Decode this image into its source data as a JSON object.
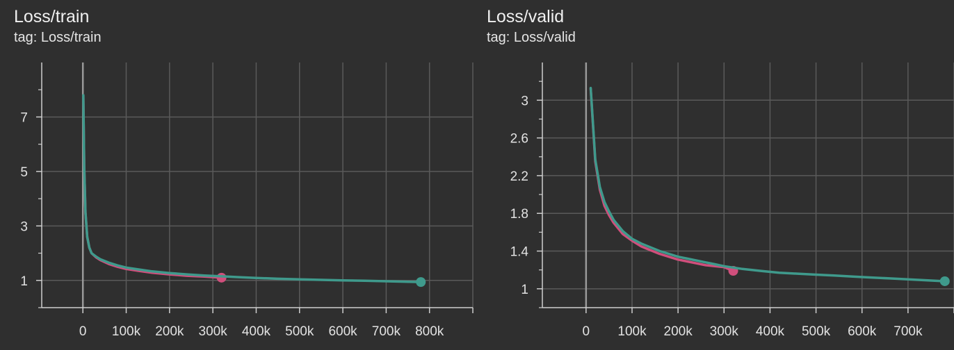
{
  "colors": {
    "background": "#2f2f2f",
    "grid": "#5a5a5a",
    "axis": "#cfcfcf",
    "zero_line": "#9a9a9a",
    "run_pink": "#d04f7c",
    "run_teal": "#3f9a8c"
  },
  "charts": [
    {
      "title": "Loss/train",
      "tag": "tag: Loss/train"
    },
    {
      "title": "Loss/valid",
      "tag": "tag: Loss/valid"
    }
  ],
  "chart_data": [
    {
      "type": "line",
      "title": "Loss/train",
      "xlabel": "",
      "ylabel": "",
      "xlim": [
        -95000,
        900000
      ],
      "ylim": [
        0,
        9
      ],
      "xticks": [
        0,
        100000,
        200000,
        300000,
        400000,
        500000,
        600000,
        700000,
        800000
      ],
      "xtick_labels": [
        "0",
        "100k",
        "200k",
        "300k",
        "400k",
        "500k",
        "600k",
        "700k",
        "800k"
      ],
      "yticks": [
        1,
        3,
        5,
        7
      ],
      "ytick_labels": [
        "1",
        "3",
        "5",
        "7"
      ],
      "y_minor_ticks": [
        0,
        2,
        4,
        6,
        8
      ],
      "grid": true,
      "series": [
        {
          "color": "#d04f7c",
          "x": [
            1000,
            3000,
            6000,
            10000,
            15000,
            20000,
            30000,
            40000,
            60000,
            80000,
            100000,
            130000,
            160000,
            200000,
            240000,
            280000,
            320000
          ],
          "y": [
            7.8,
            5.2,
            3.5,
            2.6,
            2.2,
            2.0,
            1.85,
            1.75,
            1.6,
            1.5,
            1.42,
            1.35,
            1.28,
            1.22,
            1.17,
            1.14,
            1.1
          ]
        },
        {
          "color": "#3f9a8c",
          "x": [
            1000,
            3000,
            6000,
            10000,
            15000,
            20000,
            30000,
            40000,
            60000,
            80000,
            100000,
            130000,
            160000,
            200000,
            240000,
            280000,
            320000,
            360000,
            400000,
            450000,
            500000,
            550000,
            600000,
            650000,
            700000,
            750000,
            780000
          ],
          "y": [
            7.8,
            5.2,
            3.5,
            2.6,
            2.2,
            2.0,
            1.88,
            1.78,
            1.65,
            1.55,
            1.47,
            1.4,
            1.33,
            1.27,
            1.22,
            1.18,
            1.15,
            1.12,
            1.09,
            1.06,
            1.04,
            1.02,
            1.0,
            0.99,
            0.97,
            0.95,
            0.94
          ]
        }
      ]
    },
    {
      "type": "line",
      "title": "Loss/valid",
      "xlabel": "",
      "ylabel": "",
      "xlim": [
        -95000,
        800000
      ],
      "ylim": [
        0.8,
        3.4
      ],
      "xticks": [
        0,
        100000,
        200000,
        300000,
        400000,
        500000,
        600000,
        700000
      ],
      "xtick_labels": [
        "0",
        "100k",
        "200k",
        "300k",
        "400k",
        "500k",
        "600k",
        "700k"
      ],
      "yticks": [
        1,
        1.4,
        1.8,
        2.2,
        2.6,
        3
      ],
      "ytick_labels": [
        "1",
        "1.4",
        "1.8",
        "2.2",
        "2.6",
        "3"
      ],
      "y_minor_ticks": [
        0.8,
        1.2,
        1.6,
        2.0,
        2.4,
        2.8,
        3.2
      ],
      "grid": true,
      "series": [
        {
          "color": "#d04f7c",
          "x": [
            10000,
            20000,
            30000,
            40000,
            50000,
            60000,
            80000,
            100000,
            120000,
            140000,
            160000,
            180000,
            200000,
            220000,
            240000,
            260000,
            280000,
            300000,
            320000
          ],
          "y": [
            3.12,
            2.35,
            2.05,
            1.88,
            1.78,
            1.7,
            1.58,
            1.51,
            1.45,
            1.41,
            1.37,
            1.34,
            1.31,
            1.29,
            1.27,
            1.25,
            1.24,
            1.23,
            1.19
          ]
        },
        {
          "color": "#3f9a8c",
          "x": [
            10000,
            20000,
            30000,
            40000,
            50000,
            60000,
            80000,
            100000,
            120000,
            140000,
            160000,
            180000,
            200000,
            220000,
            240000,
            260000,
            280000,
            300000,
            340000,
            380000,
            420000,
            460000,
            500000,
            540000,
            580000,
            620000,
            660000,
            700000,
            740000,
            780000
          ],
          "y": [
            3.13,
            2.37,
            2.08,
            1.92,
            1.82,
            1.73,
            1.61,
            1.53,
            1.48,
            1.44,
            1.4,
            1.37,
            1.34,
            1.32,
            1.3,
            1.28,
            1.26,
            1.24,
            1.21,
            1.19,
            1.17,
            1.16,
            1.15,
            1.14,
            1.13,
            1.12,
            1.11,
            1.1,
            1.09,
            1.08
          ]
        }
      ]
    }
  ]
}
